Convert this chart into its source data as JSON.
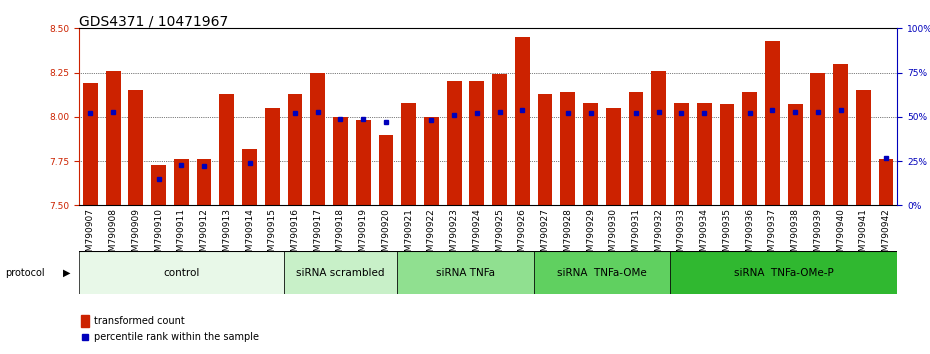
{
  "title": "GDS4371 / 10471967",
  "samples": [
    "GSM790907",
    "GSM790908",
    "GSM790909",
    "GSM790910",
    "GSM790911",
    "GSM790912",
    "GSM790913",
    "GSM790914",
    "GSM790915",
    "GSM790916",
    "GSM790917",
    "GSM790918",
    "GSM790919",
    "GSM790920",
    "GSM790921",
    "GSM790922",
    "GSM790923",
    "GSM790924",
    "GSM790925",
    "GSM790926",
    "GSM790927",
    "GSM790928",
    "GSM790929",
    "GSM790930",
    "GSM790931",
    "GSM790932",
    "GSM790933",
    "GSM790934",
    "GSM790935",
    "GSM790936",
    "GSM790937",
    "GSM790938",
    "GSM790939",
    "GSM790940",
    "GSM790941",
    "GSM790942"
  ],
  "red_values": [
    8.19,
    8.26,
    8.15,
    7.73,
    7.76,
    7.76,
    8.13,
    7.82,
    8.05,
    8.13,
    8.25,
    8.0,
    7.98,
    7.9,
    8.08,
    8.0,
    8.2,
    8.2,
    8.24,
    8.45,
    8.13,
    8.14,
    8.08,
    8.05,
    8.14,
    8.26,
    8.08,
    8.08,
    8.07,
    8.14,
    8.43,
    8.07,
    8.25,
    8.3,
    8.15,
    7.76
  ],
  "blue_percentiles": [
    52,
    53,
    null,
    15,
    23,
    22,
    null,
    24,
    null,
    52,
    53,
    49,
    49,
    47,
    null,
    48,
    51,
    52,
    53,
    54,
    null,
    52,
    52,
    null,
    52,
    53,
    52,
    52,
    null,
    52,
    54,
    53,
    53,
    54,
    null,
    27
  ],
  "groups": [
    {
      "label": "control",
      "start": 0,
      "end": 9,
      "color": "#e8f8e8"
    },
    {
      "label": "siRNA scrambled",
      "start": 9,
      "end": 14,
      "color": "#c8f0c8"
    },
    {
      "label": "siRNA TNFa",
      "start": 14,
      "end": 20,
      "color": "#90e090"
    },
    {
      "label": "siRNA  TNFa-OMe",
      "start": 20,
      "end": 26,
      "color": "#60d060"
    },
    {
      "label": "siRNA  TNFa-OMe-P",
      "start": 26,
      "end": 36,
      "color": "#30b830"
    }
  ],
  "ylim_left": [
    7.5,
    8.5
  ],
  "ylim_right": [
    0,
    100
  ],
  "yticks_left": [
    7.5,
    7.75,
    8.0,
    8.25,
    8.5
  ],
  "yticks_right": [
    0,
    25,
    50,
    75,
    100
  ],
  "bar_color": "#cc2200",
  "dot_color": "#0000bb",
  "background_color": "#ffffff",
  "title_fontsize": 10,
  "tick_fontsize": 6.5,
  "group_fontsize": 7.5
}
